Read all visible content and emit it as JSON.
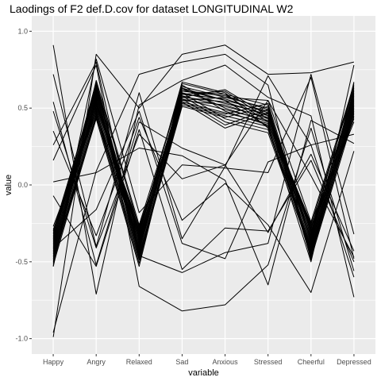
{
  "chart_data": {
    "type": "line",
    "title": "Laodings of F2 def.D.cov for dataset LONGITUDINAL W2",
    "xlabel": "variable",
    "ylabel": "value",
    "categories": [
      "Happy",
      "Angry",
      "Relaxed",
      "Sad",
      "Anxious",
      "Stressed",
      "Cheerful",
      "Depressed"
    ],
    "ylim": [
      -1.0,
      1.0
    ],
    "yticks": [
      "-1.0",
      "-0.5",
      "0.0",
      "0.5",
      "1.0"
    ],
    "ytick_values": [
      -1.0,
      -0.5,
      0.0,
      0.5,
      1.0
    ],
    "grid": true,
    "legend": "none",
    "colors": {
      "panel": "#ebebeb",
      "grid": "#ffffff",
      "line": "#000000",
      "tick_text": "#4d4d4d"
    },
    "series": [
      {
        "values": [
          -0.3,
          0.63,
          -0.35,
          0.62,
          0.55,
          0.48,
          -0.33,
          0.6
        ]
      },
      {
        "values": [
          -0.32,
          0.65,
          -0.37,
          0.6,
          0.53,
          0.46,
          -0.35,
          0.62
        ]
      },
      {
        "values": [
          -0.34,
          0.62,
          -0.39,
          0.58,
          0.51,
          0.44,
          -0.37,
          0.58
        ]
      },
      {
        "values": [
          -0.36,
          0.6,
          -0.41,
          0.56,
          0.49,
          0.42,
          -0.39,
          0.56
        ]
      },
      {
        "values": [
          -0.38,
          0.58,
          -0.43,
          0.54,
          0.47,
          0.4,
          -0.41,
          0.54
        ]
      },
      {
        "values": [
          -0.4,
          0.56,
          -0.45,
          0.52,
          0.45,
          0.38,
          -0.43,
          0.52
        ]
      },
      {
        "values": [
          -0.42,
          0.54,
          -0.3,
          0.64,
          0.57,
          0.5,
          -0.45,
          0.5
        ]
      },
      {
        "values": [
          -0.44,
          0.52,
          -0.32,
          0.66,
          0.59,
          0.52,
          -0.47,
          0.48
        ]
      },
      {
        "values": [
          -0.46,
          0.5,
          -0.34,
          0.61,
          0.58,
          0.49,
          -0.31,
          0.66
        ]
      },
      {
        "values": [
          -0.48,
          0.48,
          -0.36,
          0.59,
          0.56,
          0.47,
          -0.29,
          0.64
        ]
      },
      {
        "values": [
          -0.5,
          0.46,
          -0.38,
          0.57,
          0.54,
          0.45,
          -0.27,
          0.46
        ]
      },
      {
        "values": [
          -0.52,
          0.44,
          -0.4,
          0.55,
          0.52,
          0.43,
          -0.25,
          0.44
        ]
      },
      {
        "values": [
          -0.35,
          0.67,
          -0.42,
          0.63,
          0.5,
          0.41,
          -0.32,
          0.61
        ]
      },
      {
        "values": [
          -0.37,
          0.64,
          -0.44,
          0.65,
          0.48,
          0.39,
          -0.34,
          0.59
        ]
      },
      {
        "values": [
          -0.39,
          0.61,
          -0.46,
          0.53,
          0.46,
          0.53,
          -0.36,
          0.57
        ]
      },
      {
        "values": [
          -0.41,
          0.59,
          -0.48,
          0.51,
          0.44,
          0.51,
          -0.38,
          0.55
        ]
      },
      {
        "values": [
          -0.43,
          0.57,
          -0.33,
          0.67,
          0.6,
          0.37,
          -0.4,
          0.53
        ]
      },
      {
        "values": [
          -0.45,
          0.55,
          -0.31,
          0.6,
          0.43,
          0.36,
          -0.42,
          0.51
        ]
      },
      {
        "values": [
          -0.33,
          0.53,
          -0.29,
          0.58,
          0.41,
          0.34,
          -0.44,
          0.49
        ]
      },
      {
        "values": [
          -0.31,
          0.51,
          -0.27,
          0.56,
          0.39,
          0.49,
          -0.46,
          0.47
        ]
      },
      {
        "values": [
          -0.29,
          0.49,
          -0.47,
          0.54,
          0.37,
          0.47,
          -0.48,
          0.45
        ]
      },
      {
        "values": [
          -0.27,
          0.47,
          -0.49,
          0.57,
          0.62,
          0.45,
          -0.3,
          0.43
        ]
      },
      {
        "values": [
          -0.47,
          0.45,
          -0.51,
          0.59,
          0.61,
          0.43,
          -0.28,
          0.41
        ]
      },
      {
        "values": [
          -0.49,
          0.43,
          -0.53,
          0.61,
          0.59,
          0.41,
          -0.26,
          0.63
        ]
      },
      {
        "values": [
          -0.51,
          0.66,
          -0.28,
          0.55,
          0.57,
          0.55,
          -0.24,
          0.65
        ]
      },
      {
        "values": [
          -0.53,
          0.68,
          -0.26,
          0.63,
          0.55,
          0.38,
          -0.5,
          0.67
        ]
      },
      {
        "values": [
          -0.99,
          0.85,
          0.5,
          0.85,
          0.91,
          0.72,
          0.73,
          0.8
        ]
      },
      {
        "values": [
          -0.96,
          0.09,
          0.72,
          0.8,
          0.85,
          0.65,
          -0.49,
          0.78
        ]
      },
      {
        "values": [
          0.91,
          -0.71,
          0.52,
          0.68,
          0.78,
          0.57,
          0.45,
          -0.73
        ]
      },
      {
        "values": [
          0.72,
          -0.4,
          0.6,
          -0.35,
          0.12,
          0.71,
          0.26,
          -0.6
        ]
      },
      {
        "values": [
          0.54,
          -0.52,
          0.41,
          0.24,
          0.13,
          -0.31,
          0.2,
          -0.43
        ]
      },
      {
        "values": [
          0.48,
          -0.41,
          0.33,
          0.04,
          0.13,
          0.55,
          0.06,
          -0.47
        ]
      },
      {
        "values": [
          0.26,
          0.8,
          -0.46,
          -0.57,
          -0.44,
          -0.38,
          0.72,
          -0.32
        ]
      },
      {
        "values": [
          -0.07,
          -0.53,
          0.36,
          -0.55,
          -0.28,
          -0.3,
          0.16,
          -0.5
        ]
      },
      {
        "values": [
          0.02,
          0.08,
          0.24,
          0.19,
          0.03,
          -0.65,
          0.42,
          0.27
        ]
      },
      {
        "values": [
          0.16,
          0.78,
          -0.66,
          -0.82,
          -0.78,
          -0.52,
          0.37,
          -0.56
        ]
      },
      {
        "values": [
          -0.41,
          -0.16,
          0.48,
          -0.38,
          -0.48,
          0.15,
          0.26,
          0.33
        ]
      },
      {
        "values": [
          0.35,
          -0.33,
          0.44,
          -0.23,
          0.01,
          -0.26,
          -0.7,
          0.22
        ]
      },
      {
        "values": [
          -0.53,
          0.82,
          -0.18,
          0.13,
          0.11,
          0.08,
          0.7,
          -0.48
        ]
      }
    ]
  }
}
